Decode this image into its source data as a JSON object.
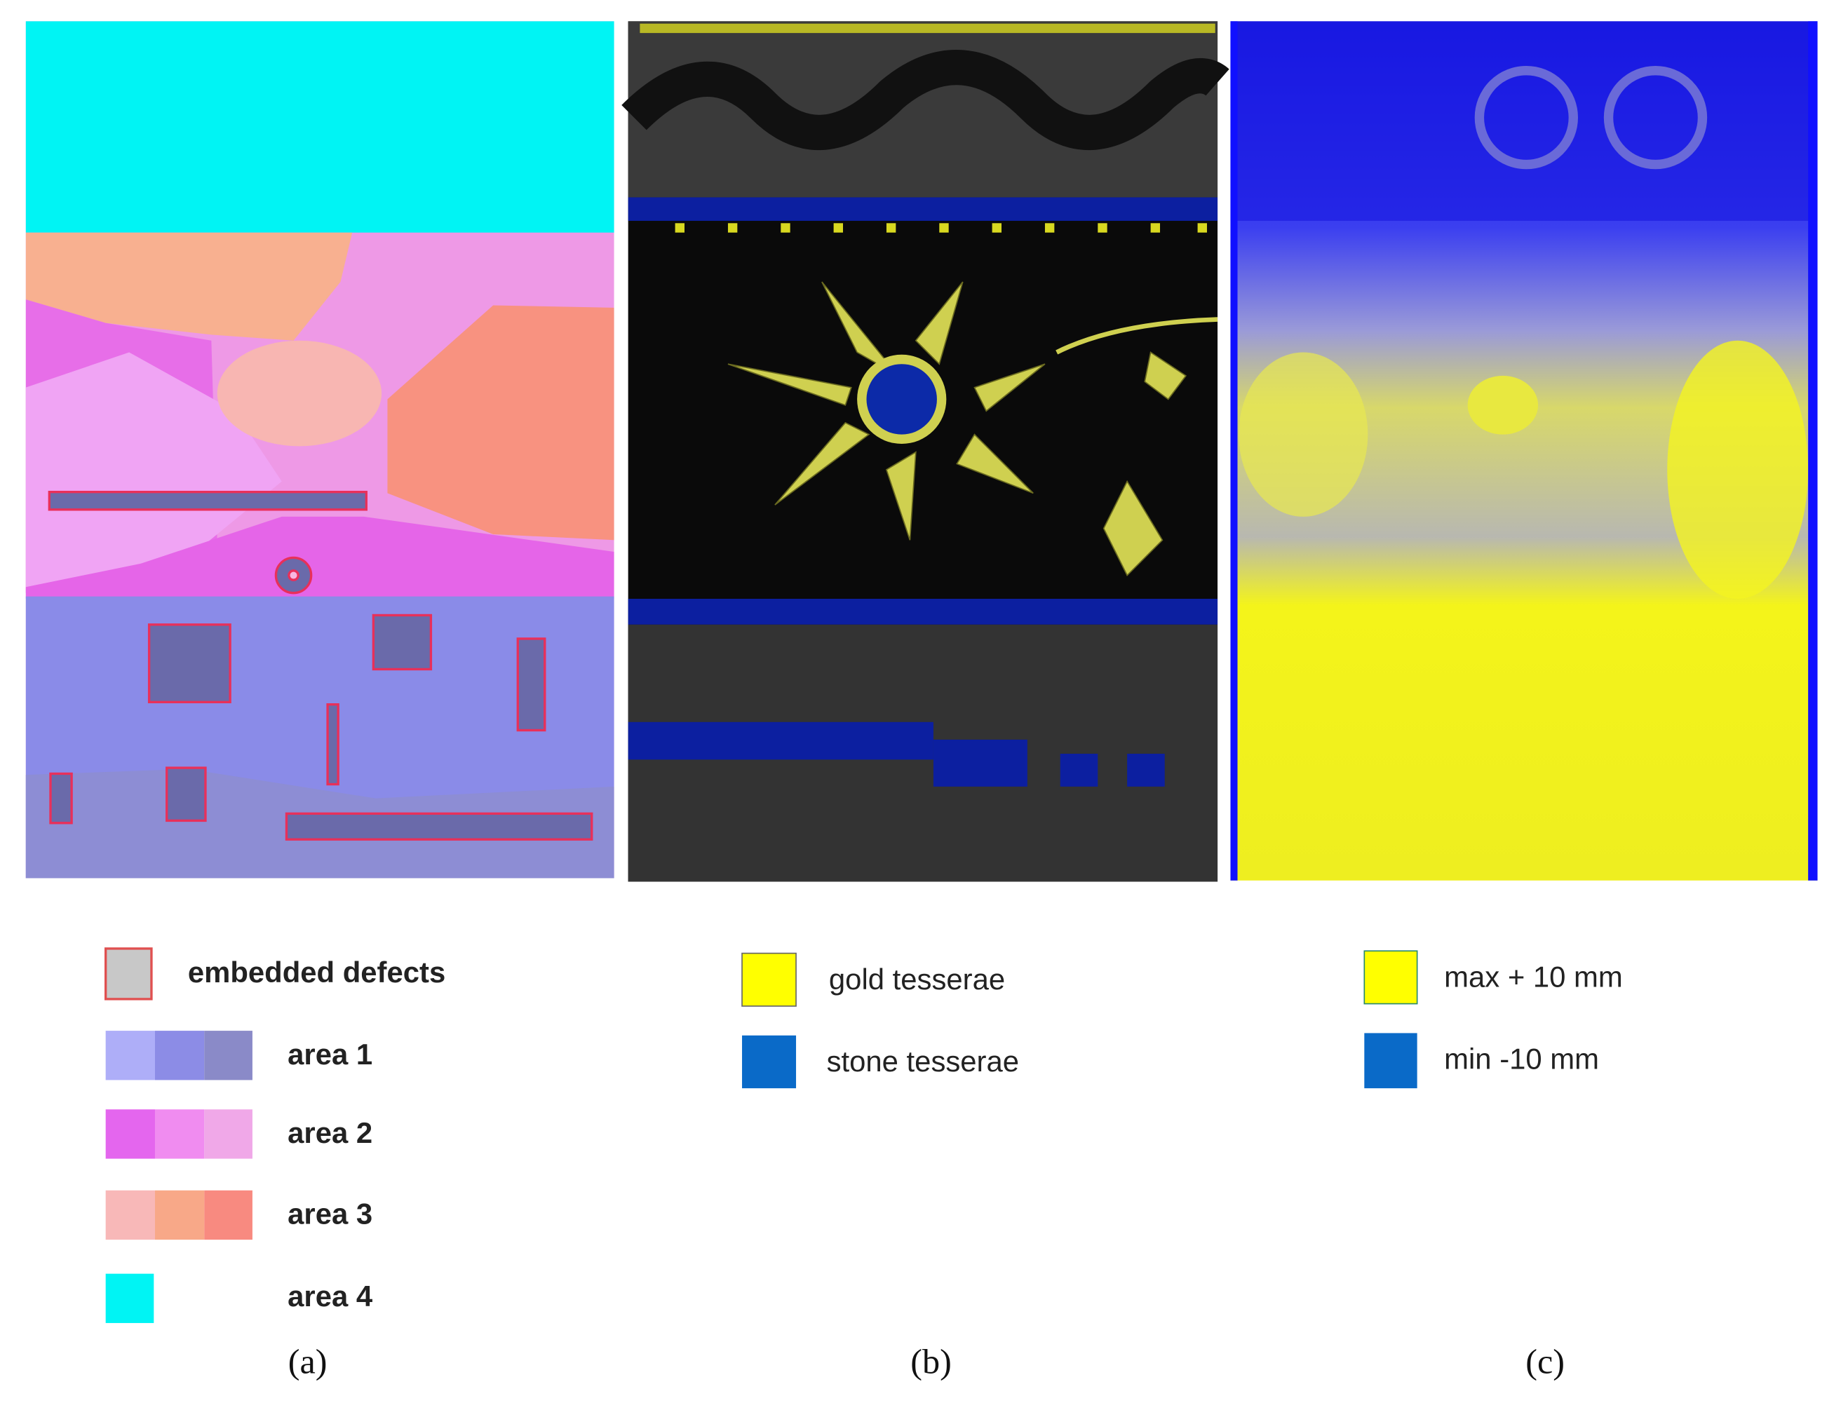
{
  "panel_a": {
    "legend": [
      "embedded defects",
      "area 1",
      "area 2",
      "area 3",
      "area 4"
    ],
    "caption": "(a)"
  },
  "panel_b": {
    "legend": [
      "gold tesserae",
      "stone tesserae"
    ],
    "caption": "(b)"
  },
  "panel_c": {
    "legend": [
      "max + 10 mm",
      "min -10 mm"
    ],
    "caption": "(c)"
  }
}
